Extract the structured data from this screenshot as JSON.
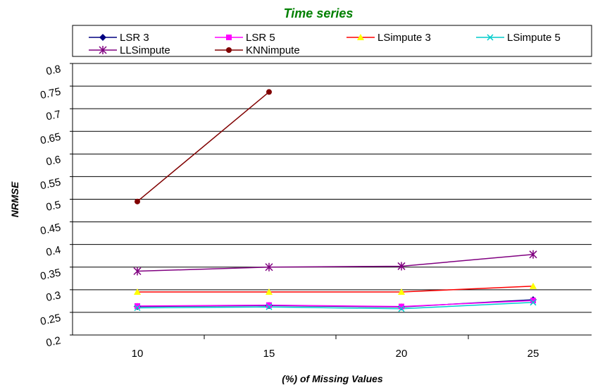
{
  "chart_data": {
    "type": "line",
    "title": "Time series",
    "title_color": "#008000",
    "xlabel": "(%) of Missing Values",
    "ylabel": "NRMSE",
    "x": [
      10,
      15,
      20,
      25
    ],
    "ylim": [
      0.2,
      0.8
    ],
    "y_ticks": [
      "0.2",
      "0.25",
      "0.3",
      "0.35",
      "0.4",
      "0.45",
      "0.5",
      "0.55",
      "0.6",
      "0.65",
      "0.7",
      "0.75",
      "0.8"
    ],
    "x_ticks": [
      "10",
      "15",
      "20",
      "25"
    ],
    "grid": "horizontal",
    "legend_position": "top",
    "series": [
      {
        "name": "LSR 3",
        "color": "#000080",
        "marker": "diamond",
        "values": [
          0.263,
          0.265,
          0.262,
          0.278
        ]
      },
      {
        "name": "LSR 5",
        "color": "#FF00FF",
        "marker": "square",
        "values": [
          0.264,
          0.266,
          0.263,
          0.276
        ]
      },
      {
        "name": "LSimpute 3",
        "color": "#FF0000",
        "line_color": "#FF0000",
        "marker_color": "#FFFF00",
        "marker": "triangle",
        "values": [
          0.295,
          0.295,
          0.295,
          0.308
        ]
      },
      {
        "name": "LSimpute 5",
        "color": "#00CCCC",
        "marker": "x",
        "values": [
          0.26,
          0.262,
          0.258,
          0.272
        ]
      },
      {
        "name": "LLSimpute",
        "color": "#800080",
        "marker": "star",
        "values": [
          0.341,
          0.35,
          0.352,
          0.378
        ]
      },
      {
        "name": "KNNimpute",
        "color": "#800000",
        "marker": "circle",
        "values": [
          0.495,
          0.737,
          null,
          null
        ]
      }
    ]
  }
}
